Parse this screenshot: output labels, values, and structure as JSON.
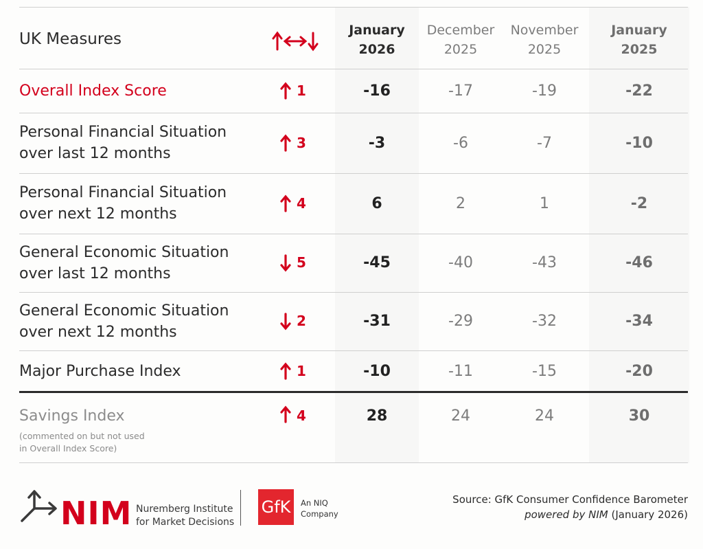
{
  "header": {
    "title": "UK Measures",
    "columns": [
      "January\n2026",
      "December\n2025",
      "November\n2025",
      "January\n2025"
    ]
  },
  "rows": [
    {
      "label": "Overall Index Score",
      "direction": "up",
      "change": "1",
      "values": [
        "-16",
        "-17",
        "-19",
        "-22"
      ]
    },
    {
      "label": "Personal Financial Situation\nover last 12 months",
      "direction": "up",
      "change": "3",
      "values": [
        "-3",
        "-6",
        "-7",
        "-10"
      ]
    },
    {
      "label": "Personal Financial Situation\nover next 12 months",
      "direction": "up",
      "change": "4",
      "values": [
        "6",
        "2",
        "1",
        "-2"
      ]
    },
    {
      "label": "General Economic Situation\nover last 12 months",
      "direction": "down",
      "change": "5",
      "values": [
        "-45",
        "-40",
        "-43",
        "-46"
      ]
    },
    {
      "label": "General Economic Situation\nover next 12 months",
      "direction": "down",
      "change": "2",
      "values": [
        "-31",
        "-29",
        "-32",
        "-34"
      ]
    },
    {
      "label": "Major Purchase Index",
      "direction": "up",
      "change": "1",
      "values": [
        "-10",
        "-11",
        "-15",
        "-20"
      ]
    },
    {
      "label": "Savings Index",
      "direction": "up",
      "change": "4",
      "values": [
        "28",
        "24",
        "24",
        "30"
      ]
    }
  ],
  "savings_note": "(commented on but not used\nin Overall Index Score)",
  "footer": {
    "nim_wordmark": "NIM",
    "nim_name": "Nuremberg Institute\nfor Market Decisions",
    "gfk_logo": "GfK",
    "niq_tagline": "An NIQ\nCompany",
    "source_line1": "Source: GfK Consumer Confidence Barometer",
    "source_powered": "powered by NIM",
    "source_date": " (January 2026)"
  },
  "colors": {
    "accent": "#d3001c",
    "text": "#2b2b2b",
    "muted": "#7c7c7c"
  },
  "chart_data": {
    "type": "table",
    "title": "UK Measures",
    "columns": [
      "January 2026",
      "December 2025",
      "November 2025",
      "January 2025"
    ],
    "rows": [
      {
        "name": "Overall Index Score",
        "change": 1,
        "values": [
          -16,
          -17,
          -19,
          -22
        ]
      },
      {
        "name": "Personal Financial Situation over last 12 months",
        "change": 3,
        "values": [
          -3,
          -6,
          -7,
          -10
        ]
      },
      {
        "name": "Personal Financial Situation over next 12 months",
        "change": 4,
        "values": [
          6,
          2,
          1,
          -2
        ]
      },
      {
        "name": "General Economic Situation over last 12 months",
        "change": -5,
        "values": [
          -45,
          -40,
          -43,
          -46
        ]
      },
      {
        "name": "General Economic Situation over next 12 months",
        "change": -2,
        "values": [
          -31,
          -29,
          -32,
          -34
        ]
      },
      {
        "name": "Major Purchase Index",
        "change": 1,
        "values": [
          -10,
          -11,
          -15,
          -20
        ]
      },
      {
        "name": "Savings Index",
        "change": 4,
        "values": [
          28,
          24,
          24,
          30
        ]
      }
    ]
  }
}
